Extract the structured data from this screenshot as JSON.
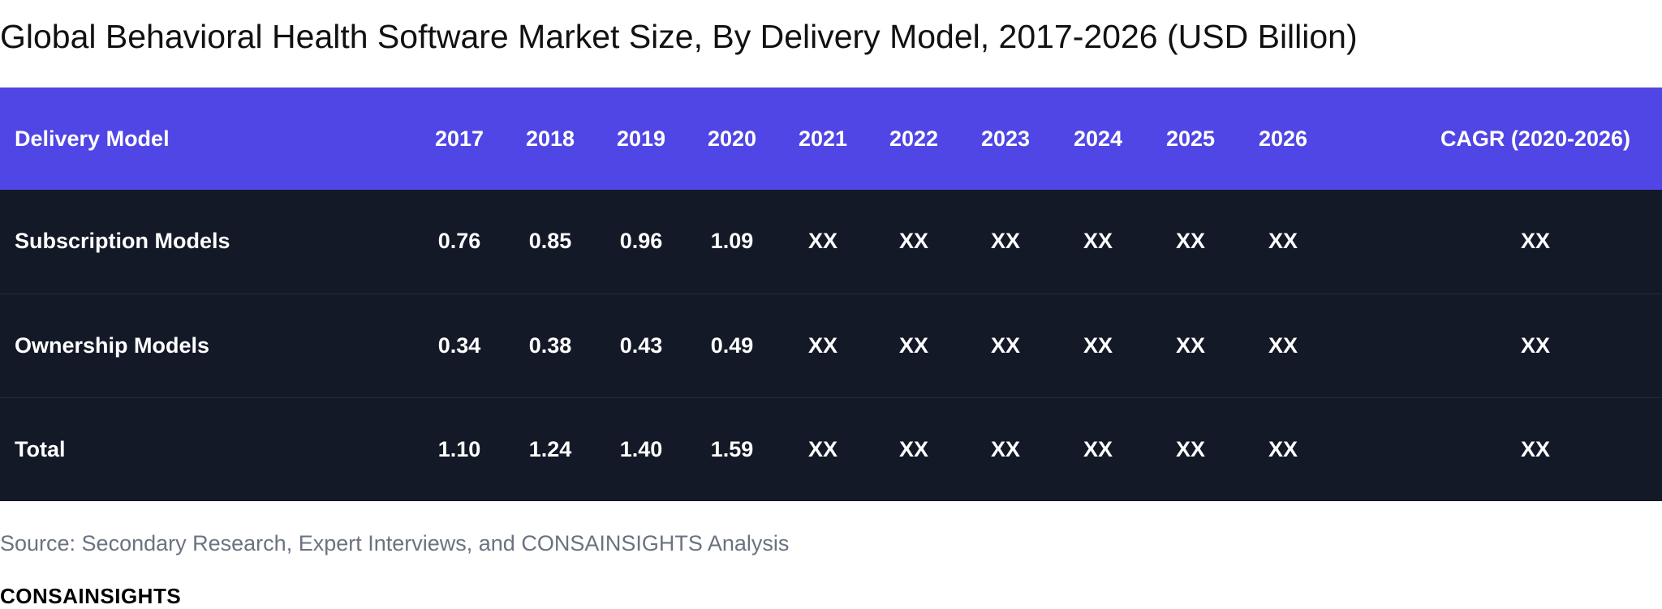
{
  "chart_data": {
    "type": "table",
    "title": "Global Behavioral Health Software Market Size, By Delivery Model, 2017-2026 (USD Billion)",
    "columns": [
      "Delivery Model",
      "2017",
      "2018",
      "2019",
      "2020",
      "2021",
      "2022",
      "2023",
      "2024",
      "2025",
      "2026",
      "CAGR (2020-2026)"
    ],
    "rows": [
      [
        "Subscription Models",
        "0.76",
        "0.85",
        "0.96",
        "1.09",
        "XX",
        "XX",
        "XX",
        "XX",
        "XX",
        "XX",
        "XX"
      ],
      [
        "Ownership Models",
        "0.34",
        "0.38",
        "0.43",
        "0.49",
        "XX",
        "XX",
        "XX",
        "XX",
        "XX",
        "XX",
        "XX"
      ],
      [
        "Total",
        "1.10",
        "1.24",
        "1.40",
        "1.59",
        "XX",
        "XX",
        "XX",
        "XX",
        "XX",
        "XX",
        "XX"
      ]
    ],
    "colors": {
      "header_bg": "#5046e5",
      "body_bg": "#131927",
      "text": "#ffffff"
    }
  },
  "source": "Source: Secondary Research, Expert Interviews, and CONSAINSIGHTS Analysis",
  "brand": "CONSAINSIGHTS"
}
